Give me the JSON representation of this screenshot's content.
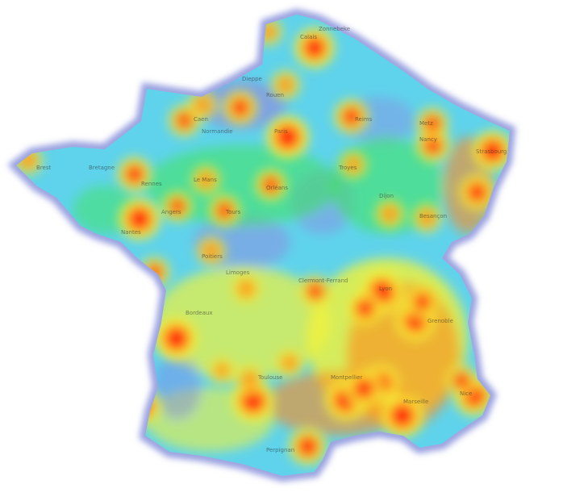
{
  "map": {
    "type": "heatmap",
    "region": "France",
    "palette": [
      "#7f86e6",
      "#57d5f0",
      "#3ee65a",
      "#f2f23a",
      "#ff8a1a",
      "#ff1a0a"
    ],
    "border_color": "#8f97d8",
    "place_labels": [
      "Zonnebeke",
      "Calais",
      "Dieppe",
      "Rouen",
      "Reims",
      "Metz",
      "Caen",
      "Normandie",
      "Bretagne",
      "Brest",
      "Rennes",
      "Nantes",
      "Paris",
      "Orléans",
      "Tours",
      "Dijon",
      "Besançon",
      "Limoges",
      "Lyon",
      "Clermont-Ferrand",
      "Bordeaux",
      "Toulouse",
      "Montpellier",
      "Marseille",
      "Nice",
      "Perpignan",
      "Strasbourg",
      "Le Mans",
      "Poitiers",
      "Grenoble",
      "Nancy",
      "Troyes",
      "Angers"
    ],
    "hotspots": [
      {
        "lon": 2.35,
        "lat": 48.85,
        "intensity": 1.0
      },
      {
        "lon": 3.06,
        "lat": 50.63,
        "intensity": 0.9
      },
      {
        "lon": 4.83,
        "lat": 45.76,
        "intensity": 1.0
      },
      {
        "lon": 5.37,
        "lat": 43.3,
        "intensity": 1.0
      },
      {
        "lon": 7.26,
        "lat": 43.7,
        "intensity": 0.9
      },
      {
        "lon": 1.44,
        "lat": 43.6,
        "intensity": 1.0
      },
      {
        "lon": -0.58,
        "lat": 44.84,
        "intensity": 1.0
      },
      {
        "lon": -1.55,
        "lat": 47.22,
        "intensity": 0.95
      },
      {
        "lon": 3.88,
        "lat": 43.61,
        "intensity": 0.95
      },
      {
        "lon": 7.75,
        "lat": 48.58,
        "intensity": 0.9
      },
      {
        "lon": 5.72,
        "lat": 45.19,
        "intensity": 0.9
      },
      {
        "lon": 4.03,
        "lat": 49.26,
        "intensity": 0.7
      },
      {
        "lon": 6.18,
        "lat": 48.69,
        "intensity": 0.7
      },
      {
        "lon": 6.17,
        "lat": 49.12,
        "intensity": 0.6
      },
      {
        "lon": 1.1,
        "lat": 49.44,
        "intensity": 0.7
      },
      {
        "lon": 0.11,
        "lat": 49.49,
        "intensity": 0.5
      },
      {
        "lon": -0.37,
        "lat": 49.18,
        "intensity": 0.6
      },
      {
        "lon": -1.68,
        "lat": 48.11,
        "intensity": 0.7
      },
      {
        "lon": -4.49,
        "lat": 48.39,
        "intensity": 0.5
      },
      {
        "lon": -0.55,
        "lat": 47.47,
        "intensity": 0.55
      },
      {
        "lon": 0.69,
        "lat": 47.39,
        "intensity": 0.6
      },
      {
        "lon": 1.91,
        "lat": 47.9,
        "intensity": 0.6
      },
      {
        "lon": 0.2,
        "lat": 48.0,
        "intensity": 0.5
      },
      {
        "lon": 5.04,
        "lat": 47.32,
        "intensity": 0.5
      },
      {
        "lon": 6.02,
        "lat": 47.24,
        "intensity": 0.5
      },
      {
        "lon": 3.08,
        "lat": 45.78,
        "intensity": 0.6
      },
      {
        "lon": 1.26,
        "lat": 45.83,
        "intensity": 0.5
      },
      {
        "lon": 0.34,
        "lat": 46.58,
        "intensity": 0.5
      },
      {
        "lon": 2.88,
        "lat": 42.69,
        "intensity": 0.8
      },
      {
        "lon": -1.47,
        "lat": 43.49,
        "intensity": 0.75
      },
      {
        "lon": 6.93,
        "lat": 44.0,
        "intensity": 0.6
      },
      {
        "lon": 4.81,
        "lat": 43.95,
        "intensity": 0.8
      },
      {
        "lon": 4.36,
        "lat": 43.84,
        "intensity": 0.8
      },
      {
        "lon": 5.9,
        "lat": 45.57,
        "intensity": 0.65
      },
      {
        "lon": 4.39,
        "lat": 45.44,
        "intensity": 0.7
      },
      {
        "lon": 2.3,
        "lat": 49.89,
        "intensity": 0.5
      },
      {
        "lon": 1.85,
        "lat": 50.95,
        "intensity": 0.45
      },
      {
        "lon": 4.08,
        "lat": 48.3,
        "intensity": 0.45
      },
      {
        "lon": -1.15,
        "lat": 46.16,
        "intensity": 0.55
      },
      {
        "lon": 2.4,
        "lat": 44.35,
        "intensity": 0.45
      },
      {
        "lon": 1.35,
        "lat": 44.02,
        "intensity": 0.5
      },
      {
        "lon": 0.62,
        "lat": 44.2,
        "intensity": 0.4
      },
      {
        "lon": 7.34,
        "lat": 47.75,
        "intensity": 0.75
      }
    ]
  }
}
